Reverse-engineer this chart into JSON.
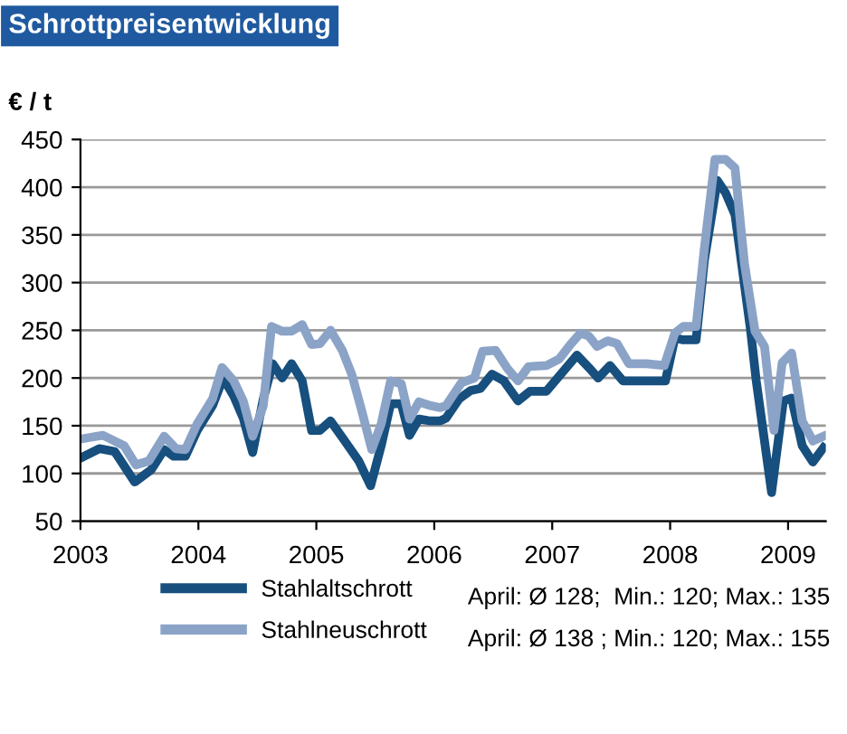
{
  "chart_data": {
    "type": "line",
    "title": "Schrottpreisentwicklung",
    "ylabel": "€ / t",
    "xlim": [
      2003,
      2009.32
    ],
    "xticks": [
      2003,
      2004,
      2005,
      2006,
      2007,
      2008,
      2009
    ],
    "ylim": [
      50,
      450
    ],
    "yticks": [
      50,
      100,
      150,
      200,
      250,
      300,
      350,
      400,
      450
    ],
    "grid": "y",
    "legend": "bottom",
    "marker": "none",
    "line_style": "solid",
    "series": [
      {
        "name": "Stahlaltschrott",
        "color": "#174f7e",
        "x": [
          2003.0,
          2003.16,
          2003.29,
          2003.46,
          2003.6,
          2003.71,
          2003.79,
          2003.89,
          2003.99,
          2004.12,
          2004.21,
          2004.3,
          2004.38,
          2004.46,
          2004.55,
          2004.63,
          2004.71,
          2004.79,
          2004.88,
          2004.96,
          2005.03,
          2005.12,
          2005.23,
          2005.36,
          2005.46,
          2005.55,
          2005.63,
          2005.72,
          2005.79,
          2005.87,
          2005.97,
          2006.05,
          2006.1,
          2006.21,
          2006.31,
          2006.39,
          2006.49,
          2006.59,
          2006.71,
          2006.81,
          2006.95,
          2007.08,
          2007.21,
          2007.31,
          2007.39,
          2007.49,
          2007.6,
          2007.7,
          2007.83,
          2007.96,
          2008.04,
          2008.11,
          2008.22,
          2008.29,
          2008.4,
          2008.47,
          2008.55,
          2008.68,
          2008.73,
          2008.86,
          2008.96,
          2009.03,
          2009.12,
          2009.21,
          2009.3
        ],
        "values": [
          116,
          126,
          123,
          91,
          104,
          125,
          118,
          118,
          145,
          171,
          200,
          181,
          158,
          122,
          178,
          215,
          200,
          215,
          197,
          145,
          145,
          155,
          136,
          113,
          87,
          129,
          173,
          173,
          140,
          157,
          155,
          155,
          158,
          178,
          187,
          189,
          204,
          197,
          176,
          186,
          186,
          205,
          224,
          211,
          200,
          213,
          197,
          197,
          197,
          197,
          242,
          240,
          240,
          323,
          407,
          394,
          371,
          252,
          197,
          80,
          176,
          179,
          129,
          112,
          127
        ]
      },
      {
        "name": "Stahlneuschrott",
        "color": "#8ba3c7",
        "x": [
          2003.0,
          2003.19,
          2003.37,
          2003.47,
          2003.58,
          2003.71,
          2003.81,
          2003.89,
          2003.99,
          2004.12,
          2004.2,
          2004.3,
          2004.38,
          2004.46,
          2004.55,
          2004.62,
          2004.71,
          2004.79,
          2004.88,
          2004.96,
          2005.03,
          2005.12,
          2005.22,
          2005.3,
          2005.38,
          2005.47,
          2005.55,
          2005.63,
          2005.72,
          2005.79,
          2005.87,
          2005.97,
          2006.05,
          2006.1,
          2006.23,
          2006.34,
          2006.41,
          2006.52,
          2006.62,
          2006.71,
          2006.8,
          2006.95,
          2007.06,
          2007.16,
          2007.24,
          2007.31,
          2007.38,
          2007.47,
          2007.55,
          2007.65,
          2007.8,
          2007.95,
          2008.04,
          2008.11,
          2008.22,
          2008.29,
          2008.38,
          2008.47,
          2008.55,
          2008.63,
          2008.72,
          2008.8,
          2008.88,
          2008.95,
          2009.03,
          2009.12,
          2009.21,
          2009.3
        ],
        "values": [
          136,
          140,
          129,
          109,
          113,
          139,
          126,
          125,
          152,
          178,
          211,
          197,
          176,
          139,
          171,
          254,
          249,
          249,
          256,
          235,
          236,
          250,
          229,
          204,
          168,
          125,
          152,
          197,
          194,
          157,
          175,
          171,
          169,
          171,
          195,
          200,
          228,
          229,
          210,
          197,
          212,
          213,
          220,
          236,
          247,
          244,
          233,
          239,
          236,
          215,
          215,
          213,
          247,
          254,
          254,
          336,
          429,
          429,
          420,
          320,
          249,
          233,
          145,
          216,
          226,
          155,
          134,
          139
        ]
      }
    ],
    "annotations": [
      "April: Ø 128;  Min.: 120; Max.: 135",
      "April: Ø 138 ; Min.: 120; Max.: 155"
    ]
  }
}
